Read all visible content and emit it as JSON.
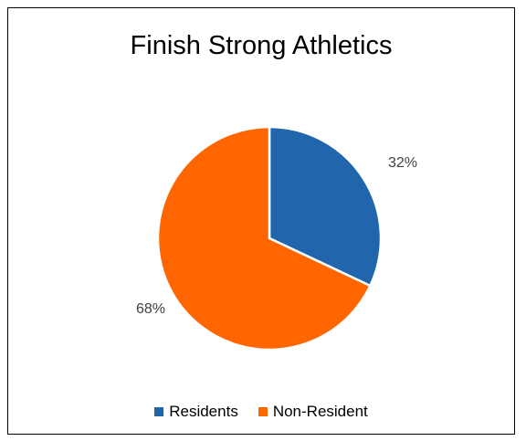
{
  "chart_data": {
    "type": "pie",
    "title": "Finish Strong Athletics",
    "categories": [
      "Residents",
      "Non-Resident"
    ],
    "values": [
      32,
      68
    ],
    "data_labels": [
      "32%",
      "68%"
    ],
    "colors": [
      "#2166AC",
      "#FF6600"
    ],
    "legend_placement": "bottom",
    "start_angle_deg": 0,
    "direction": "clockwise"
  },
  "legend": {
    "items": [
      {
        "label": "Residents",
        "color": "#2166AC"
      },
      {
        "label": "Non-Resident",
        "color": "#FF6600"
      }
    ]
  }
}
